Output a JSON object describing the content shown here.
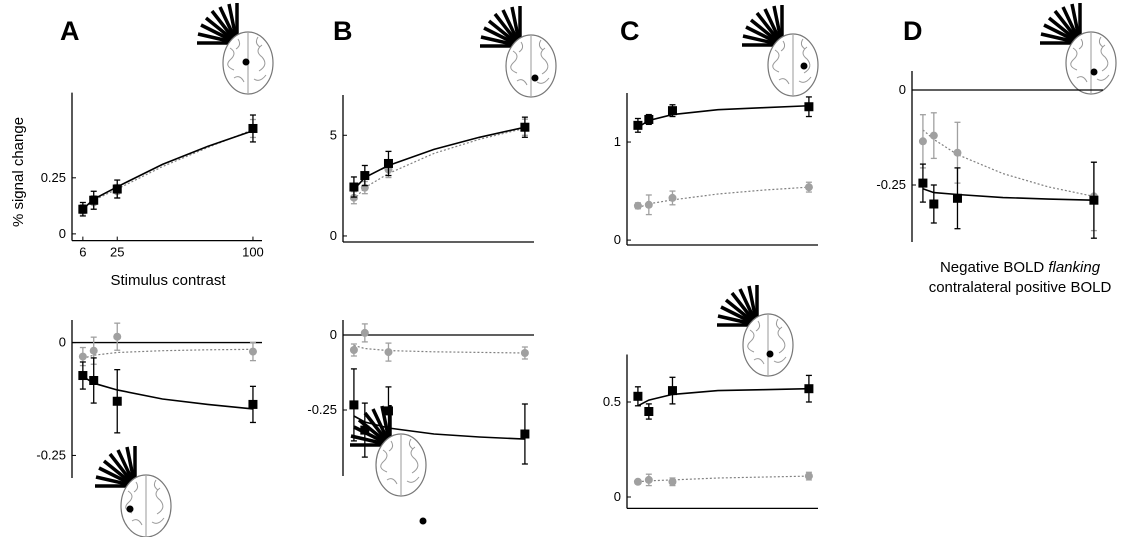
{
  "chart_data": [
    {
      "type": "line",
      "panel": "A",
      "ylabel": "% signal change",
      "xlabel": "Stimulus contrast",
      "x": [
        6,
        12,
        25,
        100
      ],
      "fit_x": [
        6,
        12,
        25,
        50,
        75,
        100
      ],
      "xlim": [
        0,
        105
      ],
      "xticks": [
        6,
        25,
        100
      ],
      "ylim": [
        -0.03,
        0.63
      ],
      "yticks": [
        0,
        0.25
      ],
      "series": [
        {
          "color": "#a0a0a0",
          "marker": "circle",
          "dash": "dotted",
          "values": [
            0.11,
            0.14,
            0.19,
            0.47
          ],
          "errors": [
            0.02,
            0.03,
            0.03,
            0.04
          ],
          "fit": [
            0.11,
            0.15,
            0.2,
            0.3,
            0.385,
            0.465
          ]
        },
        {
          "color": "#000000",
          "marker": "square",
          "dash": "solid",
          "values": [
            0.11,
            0.15,
            0.2,
            0.47
          ],
          "errors": [
            0.03,
            0.04,
            0.04,
            0.06
          ],
          "fit": [
            0.11,
            0.155,
            0.21,
            0.31,
            0.39,
            0.46
          ]
        }
      ]
    },
    {
      "type": "line",
      "x": [
        6,
        12,
        25,
        100
      ],
      "fit_x": [
        6,
        12,
        25,
        50,
        75,
        100
      ],
      "xlim": [
        0,
        105
      ],
      "ylim": [
        -0.3,
        0.05
      ],
      "yticks": [
        0,
        -0.25
      ],
      "series": [
        {
          "color": "#a0a0a0",
          "marker": "circle",
          "dash": "dotted",
          "values": [
            -0.031,
            -0.018,
            0.013,
            -0.02
          ],
          "errors": [
            0.02,
            0.03,
            0.03,
            0.02
          ],
          "fit": [
            -0.035,
            -0.028,
            -0.022,
            -0.018,
            -0.016,
            -0.015
          ]
        },
        {
          "color": "#000000",
          "marker": "square",
          "dash": "solid",
          "values": [
            -0.073,
            -0.084,
            -0.13,
            -0.137
          ],
          "errors": [
            0.03,
            0.05,
            0.07,
            0.04
          ],
          "fit": [
            -0.075,
            -0.09,
            -0.105,
            -0.125,
            -0.137,
            -0.147
          ]
        }
      ]
    },
    {
      "type": "line",
      "panel": "B",
      "x": [
        6,
        12,
        25,
        100
      ],
      "fit_x": [
        6,
        12,
        25,
        50,
        75,
        100
      ],
      "xlim": [
        0,
        105
      ],
      "ylim": [
        -0.3,
        7
      ],
      "yticks": [
        0,
        5
      ],
      "series": [
        {
          "color": "#a0a0a0",
          "marker": "circle",
          "dash": "dotted",
          "values": [
            1.9,
            2.4,
            3.3,
            5.4
          ],
          "errors": [
            0.3,
            0.3,
            0.4,
            0.4
          ],
          "fit": [
            1.8,
            2.4,
            3.1,
            4.1,
            4.8,
            5.35
          ]
        },
        {
          "color": "#000000",
          "marker": "square",
          "dash": "solid",
          "values": [
            2.43,
            3.0,
            3.6,
            5.4
          ],
          "errors": [
            0.5,
            0.5,
            0.6,
            0.5
          ],
          "fit": [
            2.3,
            2.9,
            3.5,
            4.3,
            4.9,
            5.4
          ]
        }
      ]
    },
    {
      "type": "line",
      "x": [
        6,
        12,
        25,
        100
      ],
      "fit_x": [
        6,
        12,
        25,
        50,
        75,
        100
      ],
      "xlim": [
        0,
        105
      ],
      "ylim": [
        -0.47,
        0.05
      ],
      "yticks": [
        0,
        -0.25
      ],
      "series": [
        {
          "color": "#a0a0a0",
          "marker": "circle",
          "dash": "dotted",
          "values": [
            -0.05,
            0.007,
            -0.057,
            -0.06
          ],
          "errors": [
            0.02,
            0.03,
            0.03,
            0.02
          ],
          "fit": [
            -0.035,
            -0.045,
            -0.052,
            -0.056,
            -0.058,
            -0.06
          ]
        },
        {
          "color": "#000000",
          "marker": "square",
          "dash": "solid",
          "values": [
            -0.233,
            -0.317,
            -0.253,
            -0.33
          ],
          "errors": [
            0.12,
            0.09,
            0.08,
            0.1
          ],
          "fit": [
            -0.27,
            -0.29,
            -0.31,
            -0.33,
            -0.34,
            -0.347
          ]
        }
      ]
    },
    {
      "type": "line",
      "panel": "C",
      "x": [
        6,
        12,
        25,
        100
      ],
      "fit_x": [
        6,
        12,
        25,
        50,
        75,
        100
      ],
      "xlim": [
        0,
        105
      ],
      "ylim": [
        -0.05,
        1.5
      ],
      "yticks": [
        0,
        1
      ],
      "series": [
        {
          "color": "#a0a0a0",
          "marker": "circle",
          "dash": "dotted",
          "values": [
            0.35,
            0.36,
            0.43,
            0.54
          ],
          "errors": [
            0.03,
            0.1,
            0.07,
            0.05
          ],
          "fit": [
            0.33,
            0.37,
            0.41,
            0.47,
            0.51,
            0.54
          ]
        },
        {
          "color": "#000000",
          "marker": "square",
          "dash": "solid",
          "values": [
            1.17,
            1.23,
            1.32,
            1.36
          ],
          "errors": [
            0.07,
            0.05,
            0.06,
            0.1
          ],
          "fit": [
            1.15,
            1.22,
            1.28,
            1.33,
            1.35,
            1.37
          ]
        }
      ]
    },
    {
      "type": "line",
      "x": [
        6,
        12,
        25,
        100
      ],
      "fit_x": [
        6,
        12,
        25,
        50,
        75,
        100
      ],
      "xlim": [
        0,
        105
      ],
      "ylim": [
        -0.06,
        0.75
      ],
      "yticks": [
        0,
        0.5
      ],
      "series": [
        {
          "color": "#a0a0a0",
          "marker": "circle",
          "dash": "dotted",
          "values": [
            0.08,
            0.09,
            0.08,
            0.11
          ],
          "errors": [
            0.01,
            0.03,
            0.02,
            0.02
          ],
          "fit": [
            0.08,
            0.085,
            0.09,
            0.1,
            0.105,
            0.11
          ]
        },
        {
          "color": "#000000",
          "marker": "square",
          "dash": "solid",
          "values": [
            0.53,
            0.45,
            0.56,
            0.57
          ],
          "errors": [
            0.05,
            0.04,
            0.07,
            0.07
          ],
          "fit": [
            0.48,
            0.51,
            0.54,
            0.56,
            0.565,
            0.57
          ]
        }
      ]
    },
    {
      "type": "line",
      "panel": "D",
      "caption": [
        "Negative BOLD",
        "flanking",
        "contralateral positive BOLD"
      ],
      "x": [
        6,
        12,
        25,
        100
      ],
      "fit_x": [
        6,
        12,
        25,
        50,
        75,
        100
      ],
      "xlim": [
        0,
        105
      ],
      "ylim": [
        -0.4,
        0.05
      ],
      "yticks": [
        0,
        -0.25
      ],
      "series": [
        {
          "color": "#a0a0a0",
          "marker": "circle",
          "dash": "dotted",
          "values": [
            -0.135,
            -0.12,
            -0.165,
            -0.28
          ],
          "errors": [
            0.07,
            0.06,
            0.08,
            0.09
          ],
          "fit": [
            -0.105,
            -0.13,
            -0.17,
            -0.22,
            -0.255,
            -0.28
          ]
        },
        {
          "color": "#000000",
          "marker": "square",
          "dash": "solid",
          "values": [
            -0.245,
            -0.3,
            -0.285,
            -0.29
          ],
          "errors": [
            0.05,
            0.05,
            0.08,
            0.1
          ],
          "fit": [
            -0.26,
            -0.27,
            -0.275,
            -0.283,
            -0.287,
            -0.29
          ]
        }
      ]
    }
  ]
}
